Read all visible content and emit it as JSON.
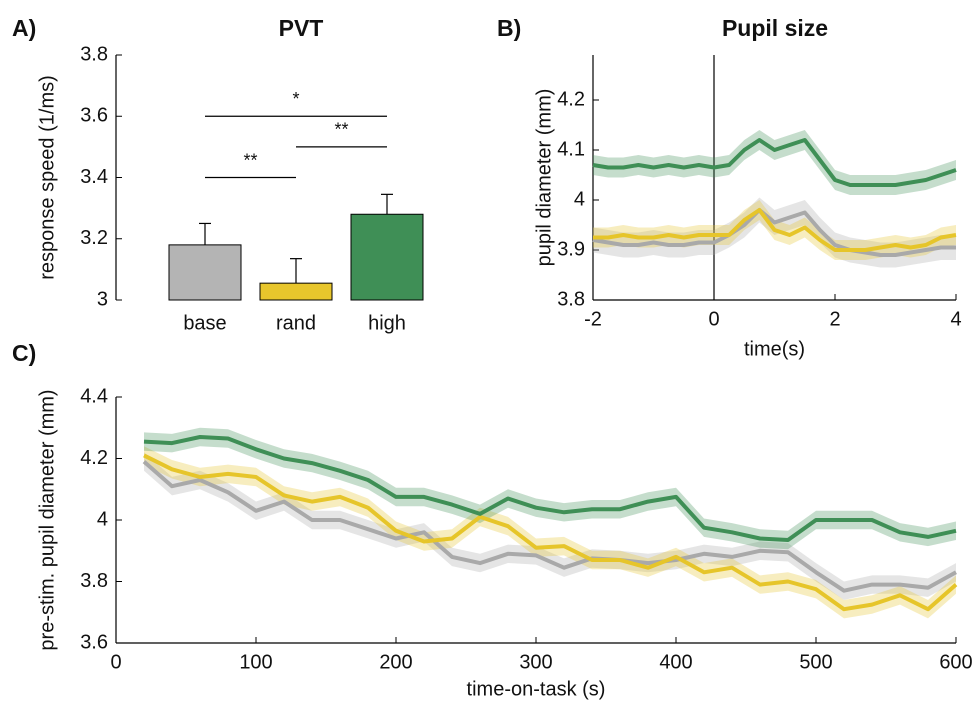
{
  "chart_data": [
    {
      "type": "bar",
      "panel": "A)",
      "title": "PVT",
      "ylabel": "response speed (1/ms)",
      "categories": [
        "base",
        "rand",
        "high"
      ],
      "values": [
        3.18,
        3.055,
        3.28
      ],
      "errors": [
        0.07,
        0.08,
        0.065
      ],
      "colors": [
        "#b4b4b4",
        "#e8c62c",
        "#3f8f56"
      ],
      "ylim": [
        3,
        3.8
      ],
      "yticks": [
        3,
        3.2,
        3.4,
        3.6,
        3.8
      ],
      "annotations": [
        {
          "text": "*",
          "y": 3.6,
          "between": [
            "base",
            "high"
          ]
        },
        {
          "text": "**",
          "y": 3.5,
          "between": [
            "rand",
            "high"
          ]
        },
        {
          "text": "**",
          "y": 3.4,
          "between": [
            "base",
            "rand"
          ]
        }
      ]
    },
    {
      "type": "line",
      "panel": "B)",
      "title": "Pupil size",
      "xlabel": "time(s)",
      "ylabel": "pupil diameter (mm)",
      "x": [
        -2,
        -1.75,
        -1.5,
        -1.25,
        -1,
        -0.75,
        -0.5,
        -0.25,
        0,
        0.25,
        0.5,
        0.75,
        1,
        1.25,
        1.5,
        1.75,
        2,
        2.25,
        2.5,
        2.75,
        3,
        3.25,
        3.5,
        3.75,
        4
      ],
      "xlim": [
        -2,
        4
      ],
      "xticks": [
        -2,
        0,
        2,
        4
      ],
      "ylim": [
        3.8,
        4.29
      ],
      "yticks": [
        3.8,
        3.9,
        4,
        4.1,
        4.2
      ],
      "vline": 0,
      "series": [
        {
          "color": "#a9a9a9",
          "error": 0.025,
          "values": [
            3.92,
            3.915,
            3.91,
            3.91,
            3.915,
            3.91,
            3.91,
            3.915,
            3.915,
            3.93,
            3.95,
            3.98,
            3.955,
            3.965,
            3.975,
            3.94,
            3.91,
            3.9,
            3.895,
            3.89,
            3.89,
            3.895,
            3.9,
            3.905,
            3.905
          ]
        },
        {
          "color": "#e6c52a",
          "error": 0.02,
          "values": [
            3.925,
            3.925,
            3.93,
            3.925,
            3.925,
            3.93,
            3.925,
            3.93,
            3.93,
            3.93,
            3.96,
            3.98,
            3.94,
            3.93,
            3.945,
            3.92,
            3.9,
            3.9,
            3.9,
            3.905,
            3.91,
            3.905,
            3.91,
            3.925,
            3.93
          ]
        },
        {
          "color": "#3f8f56",
          "error": 0.02,
          "values": [
            4.07,
            4.065,
            4.065,
            4.07,
            4.065,
            4.07,
            4.065,
            4.07,
            4.065,
            4.07,
            4.1,
            4.12,
            4.1,
            4.11,
            4.12,
            4.08,
            4.04,
            4.03,
            4.03,
            4.03,
            4.03,
            4.035,
            4.04,
            4.05,
            4.06
          ]
        }
      ]
    },
    {
      "type": "line",
      "panel": "C)",
      "xlabel": "time-on-task (s)",
      "ylabel": "pre-stim. pupil diameter (mm)",
      "x": [
        20,
        40,
        60,
        80,
        100,
        120,
        140,
        160,
        180,
        200,
        220,
        240,
        260,
        280,
        300,
        320,
        340,
        360,
        380,
        400,
        420,
        440,
        460,
        480,
        500,
        520,
        540,
        560,
        580,
        600
      ],
      "xlim": [
        0,
        600
      ],
      "xticks": [
        0,
        100,
        200,
        300,
        400,
        500,
        600
      ],
      "ylim": [
        3.6,
        4.4
      ],
      "yticks": [
        3.6,
        3.8,
        4,
        4.2,
        4.4
      ],
      "series": [
        {
          "color": "#a9a9a9",
          "error": 0.03,
          "values": [
            4.19,
            4.11,
            4.13,
            4.09,
            4.03,
            4.06,
            4.0,
            4.0,
            3.97,
            3.94,
            3.96,
            3.88,
            3.86,
            3.89,
            3.885,
            3.845,
            3.875,
            3.87,
            3.86,
            3.87,
            3.89,
            3.88,
            3.9,
            3.895,
            3.83,
            3.77,
            3.79,
            3.79,
            3.78,
            3.83
          ]
        },
        {
          "color": "#e6c52a",
          "error": 0.03,
          "values": [
            4.21,
            4.165,
            4.14,
            4.15,
            4.14,
            4.08,
            4.06,
            4.075,
            4.04,
            3.965,
            3.93,
            3.94,
            4.01,
            3.98,
            3.91,
            3.915,
            3.87,
            3.87,
            3.845,
            3.88,
            3.83,
            3.845,
            3.79,
            3.8,
            3.775,
            3.71,
            3.725,
            3.755,
            3.71,
            3.79
          ]
        },
        {
          "color": "#3f8f56",
          "error": 0.03,
          "values": [
            4.255,
            4.25,
            4.27,
            4.265,
            4.23,
            4.2,
            4.185,
            4.16,
            4.13,
            4.075,
            4.075,
            4.05,
            4.02,
            4.07,
            4.04,
            4.025,
            4.035,
            4.035,
            4.06,
            4.075,
            3.975,
            3.96,
            3.94,
            3.935,
            4.0,
            4.0,
            4.0,
            3.96,
            3.945,
            3.965
          ]
        }
      ]
    }
  ]
}
